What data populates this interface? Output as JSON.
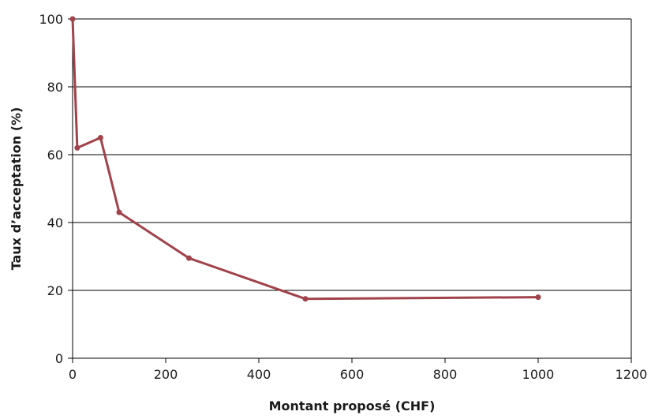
{
  "chart_data": {
    "type": "line",
    "title": "",
    "xlabel": "Montant proposé (CHF)",
    "ylabel": "Taux d’acceptation (%)",
    "xlim": [
      0,
      1200
    ],
    "ylim": [
      0,
      100
    ],
    "x_ticks": [
      0,
      200,
      400,
      600,
      800,
      1000,
      1200
    ],
    "y_ticks": [
      0,
      20,
      40,
      60,
      80,
      100
    ],
    "grid": "horizontal",
    "legend": "none",
    "colors": {
      "line": "#a0434a",
      "grid": "#000000",
      "axis": "#000000"
    },
    "series": [
      {
        "x": [
          0,
          10,
          60,
          100,
          250,
          500,
          1000
        ],
        "y": [
          100,
          62,
          65,
          43,
          29.5,
          17.5,
          18
        ]
      }
    ]
  }
}
